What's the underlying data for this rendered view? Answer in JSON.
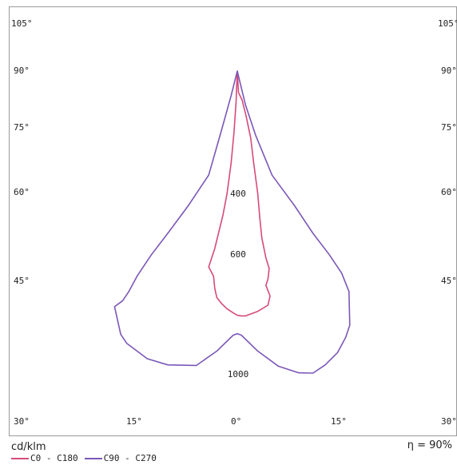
{
  "chart_data": {
    "type": "line",
    "title": "",
    "unit_label": "cd/klm",
    "efficiency_label": "η = 90%",
    "angle_labels_left": [
      "105°",
      "90°",
      "75°",
      "60°",
      "45°"
    ],
    "angle_labels_right": [
      "105°",
      "90°",
      "75°",
      "60°",
      "45°"
    ],
    "bottom_labels": [
      "30°",
      "15°",
      "0°",
      "15°",
      "30°"
    ],
    "value_labels": [
      "400",
      "600",
      "1000"
    ],
    "series": [
      {
        "name": "C0 - C180",
        "color": "#d64a7a",
        "points": [
          [
            0,
            1000
          ],
          [
            0.3,
            930
          ],
          [
            1.2,
            905
          ],
          [
            2.2,
            850
          ],
          [
            3.3,
            780
          ],
          [
            4,
            700
          ],
          [
            5,
            600
          ],
          [
            5.5,
            520
          ],
          [
            6,
            455
          ],
          [
            7,
            390
          ],
          [
            7.8,
            355
          ],
          [
            7.5,
            320
          ],
          [
            7,
            300
          ],
          [
            8,
            265
          ],
          [
            7.5,
            235
          ],
          [
            5,
            215
          ],
          [
            3,
            205
          ],
          [
            2,
            200
          ],
          [
            1,
            200
          ],
          [
            0,
            202
          ],
          [
            -1,
            210
          ],
          [
            -2.5,
            223
          ],
          [
            -3.8,
            240
          ],
          [
            -5,
            260
          ],
          [
            -5.5,
            290
          ],
          [
            -5.8,
            330
          ],
          [
            -7,
            360
          ],
          [
            -5.5,
            420
          ],
          [
            -3.5,
            530
          ],
          [
            -2.5,
            600
          ],
          [
            -1.5,
            700
          ],
          [
            -0.8,
            800
          ],
          [
            -0.3,
            900
          ],
          [
            0,
            1000
          ]
        ]
      },
      {
        "name": "C90 - C270",
        "color": "#7b57b8",
        "points": [
          [
            0,
            1000
          ],
          [
            -1.5,
            920
          ],
          [
            -4,
            800
          ],
          [
            -7,
            660
          ],
          [
            -12,
            560
          ],
          [
            -17,
            470
          ],
          [
            -21,
            400
          ],
          [
            -24.5,
            330
          ],
          [
            -26.5,
            280
          ],
          [
            -28,
            250
          ],
          [
            -30,
            230
          ],
          [
            -28.5,
            140
          ],
          [
            -27,
            110
          ],
          [
            -22,
            60
          ],
          [
            -17,
            40
          ],
          [
            -10,
            38
          ],
          [
            -5,
            85
          ],
          [
            -1,
            137
          ],
          [
            0,
            142
          ],
          [
            1,
            137
          ],
          [
            5,
            85
          ],
          [
            10,
            36
          ],
          [
            15,
            14
          ],
          [
            18.5,
            13
          ],
          [
            21.5,
            40
          ],
          [
            24.5,
            80
          ],
          [
            26.5,
            130
          ],
          [
            27.5,
            170
          ],
          [
            27.3,
            280
          ],
          [
            25.5,
            340
          ],
          [
            22.5,
            400
          ],
          [
            18.5,
            470
          ],
          [
            14,
            560
          ],
          [
            8.5,
            660
          ],
          [
            4.5,
            790
          ],
          [
            2,
            890
          ],
          [
            0,
            1000
          ]
        ]
      }
    ]
  }
}
